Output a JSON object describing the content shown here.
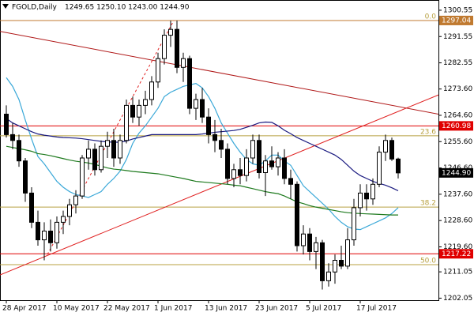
{
  "chart_data": {
    "type": "candlestick",
    "title": "FGOLD,Daily",
    "info": "1249.65 1250.10 1243.00 1244.90",
    "categories": [
      "28 Apr 2017",
      null,
      null,
      null,
      null,
      null,
      null,
      null,
      "10 May 2017",
      null,
      null,
      null,
      null,
      null,
      null,
      null,
      "22 May 2017",
      null,
      null,
      null,
      null,
      null,
      null,
      null,
      "1 Jun 2017",
      null,
      null,
      null,
      null,
      null,
      null,
      null,
      "13 Jun 2017",
      null,
      null,
      null,
      null,
      null,
      null,
      null,
      "23 Jun 2017",
      null,
      null,
      null,
      null,
      null,
      null,
      null,
      "5 Jul 2017",
      null,
      null,
      null,
      null,
      null,
      null,
      null,
      "17 Jul 2017",
      null,
      null,
      null,
      null,
      null,
      null
    ],
    "open": [
      1265,
      1258,
      1256,
      1249,
      1238,
      1228,
      1222,
      1225,
      1221,
      1228,
      1230,
      1234,
      1237,
      1250,
      1253,
      1246,
      1254,
      1256,
      1250,
      1256,
      1268,
      1264,
      1268,
      1270,
      1276,
      1284,
      1292,
      1294,
      1281,
      1284,
      1267,
      1270,
      1264,
      1258,
      1256,
      1253,
      1243,
      1246,
      1244,
      1250,
      1256,
      1245,
      1249,
      1247,
      1250,
      1243,
      1241,
      1220,
      1224,
      1218,
      1221,
      1208,
      1211,
      1215,
      1213,
      1222,
      1233,
      1238,
      1236,
      1241,
      1252,
      1256,
      1249.65
    ],
    "high": [
      1268,
      1262,
      1258,
      1250,
      1240,
      1232,
      1228,
      1229,
      1230,
      1232,
      1236,
      1239,
      1251,
      1256,
      1255,
      1256,
      1259,
      1260,
      1258,
      1270,
      1271,
      1270,
      1273,
      1278,
      1286,
      1294,
      1297,
      1297,
      1286,
      1285,
      1272,
      1274,
      1267,
      1263,
      1260,
      1255,
      1248,
      1250,
      1253,
      1258,
      1258,
      1251,
      1254,
      1252,
      1253,
      1246,
      1242,
      1227,
      1226,
      1223,
      1222,
      1214,
      1217,
      1220,
      1226,
      1236,
      1241,
      1241,
      1243,
      1254,
      1258,
      1257,
      1250.1
    ],
    "low": [
      1257,
      1253,
      1247,
      1235,
      1226,
      1220,
      1215,
      1218,
      1219,
      1224,
      1227,
      1231,
      1236,
      1246,
      1244,
      1245,
      1250,
      1247,
      1248,
      1255,
      1262,
      1261,
      1265,
      1268,
      1274,
      1282,
      1288,
      1279,
      1276,
      1265,
      1263,
      1262,
      1255,
      1252,
      1250,
      1241,
      1240,
      1241,
      1242,
      1248,
      1243,
      1237,
      1246,
      1244,
      1241,
      1236,
      1218,
      1217,
      1215,
      1212,
      1205,
      1206,
      1207,
      1212,
      1212,
      1220,
      1230,
      1232,
      1234,
      1240,
      1249,
      1249,
      1243
    ],
    "close": [
      1258,
      1256,
      1249,
      1238,
      1228,
      1222,
      1225,
      1221,
      1228,
      1230,
      1234,
      1237,
      1250,
      1253,
      1246,
      1254,
      1256,
      1250,
      1256,
      1268,
      1264,
      1268,
      1270,
      1276,
      1284,
      1292,
      1294,
      1281,
      1284,
      1267,
      1270,
      1264,
      1258,
      1256,
      1253,
      1243,
      1246,
      1244,
      1250,
      1256,
      1245,
      1249,
      1247,
      1250,
      1243,
      1241,
      1220,
      1224,
      1218,
      1221,
      1208,
      1211,
      1215,
      1213,
      1222,
      1233,
      1238,
      1236,
      1241,
      1252,
      1256,
      1249.65,
      1244.9
    ],
    "overlays": [
      {
        "color": "#3aa8d8",
        "values": [
          1277.5,
          1274.5,
          1270,
          1263,
          1256.5,
          1250.5,
          1248,
          1245,
          1242,
          1240,
          1238.5,
          1237.5,
          1237,
          1236.5,
          1237.5,
          1238.5,
          1241,
          1243,
          1245.5,
          1249.5,
          1255,
          1258.5,
          1261,
          1264,
          1267,
          1271,
          1272.5,
          1273.5,
          1274.5,
          1275,
          1275.5,
          1274,
          1271,
          1267,
          1262,
          1258.5,
          1255,
          1252,
          1249.5,
          1248,
          1247.5,
          1249,
          1251,
          1251,
          1249,
          1247.5,
          1244,
          1240.5,
          1238.5,
          1236.5,
          1234.5,
          1232.5,
          1230,
          1228,
          1226.5,
          1225.7,
          1225.5,
          1226.5,
          1227.5,
          1228.5,
          1229.5,
          1231,
          1233
        ]
      },
      {
        "color": "#1a1a80",
        "values": [
          1263.5,
          1262,
          1261,
          1260,
          1259,
          1258.2,
          1257.8,
          1257.5,
          1257.2,
          1257,
          1256.9,
          1256.8,
          1256.6,
          1256.3,
          1256,
          1255.7,
          1255.5,
          1255.4,
          1255.4,
          1255.8,
          1256.5,
          1257,
          1257.5,
          1258,
          1258,
          1258,
          1258,
          1258,
          1258,
          1258,
          1258,
          1258.2,
          1258.5,
          1258.8,
          1259,
          1259.2,
          1259.4,
          1259.8,
          1260.5,
          1261.2,
          1262,
          1262.3,
          1262.2,
          1261,
          1259.5,
          1258.3,
          1257,
          1256,
          1255,
          1254,
          1253,
          1252,
          1251,
          1249.5,
          1247.5,
          1245.5,
          1244,
          1243,
          1242,
          1241.3,
          1240.7,
          1239.8,
          1238.8
        ]
      },
      {
        "color": "#1e7a1e",
        "values": [
          1254,
          1253.6,
          1253.2,
          1252.8,
          1252.3,
          1251.5,
          1251.2,
          1250.8,
          1250.3,
          1249.8,
          1249.3,
          1248.9,
          1248.6,
          1248.3,
          1247.8,
          1247.2,
          1246.6,
          1246.2,
          1246,
          1245.7,
          1245.4,
          1245.2,
          1245,
          1244.8,
          1244.6,
          1244.2,
          1243.8,
          1243.4,
          1243,
          1242.5,
          1242,
          1241.8,
          1241.6,
          1241.4,
          1241.2,
          1241,
          1240.7,
          1240.5,
          1240,
          1239.5,
          1239,
          1238.5,
          1238.1,
          1237.8,
          1237,
          1236,
          1235,
          1234.4,
          1233.7,
          1233.2,
          1232.8,
          1232.4,
          1232,
          1231.6,
          1231.3,
          1231.1,
          1231,
          1230.9,
          1230.8,
          1230.7,
          1230.6,
          1230.5,
          1230.5
        ]
      }
    ],
    "trendlines": [
      {
        "color": "#b01818",
        "x": [
          -1,
          68.4
        ],
        "y": [
          1293.3,
          1265
        ]
      },
      {
        "color": "#e02020",
        "x": [
          -1,
          68.4
        ],
        "y": [
          1210,
          1271.6
        ]
      },
      {
        "color": "#e02020",
        "x": [
          6.5,
          26.5
        ],
        "y": [
          1217,
          1297
        ],
        "dashed": true
      }
    ],
    "fib_levels": [
      {
        "label": "0.0",
        "value": 1297.04
      },
      {
        "label": "23.6",
        "value": 1257.6
      },
      {
        "label": "38.2",
        "value": 1233.2
      },
      {
        "label": "50.0",
        "value": 1213.5
      }
    ],
    "fib_color": "#b8a040",
    "levels": [
      {
        "value": 1297.04,
        "color": "#c07a30"
      },
      {
        "value": 1260.98,
        "color": "#e00000"
      },
      {
        "value": 1217.22,
        "color": "#e00000"
      }
    ],
    "price_marker": {
      "value": 1244.9,
      "label": "1244.90"
    },
    "ylim": [
      1201.35,
      1304.05
    ],
    "yticks": [
      1300.55,
      1291.55,
      1282.55,
      {
        "value": 1273.6,
        "label": "1273.60"
      },
      {
        "value": 1264.6,
        "label": "1264.60"
      },
      {
        "value": 1255.6,
        "label": "1255.60"
      },
      {
        "value": 1246.6,
        "label": "1246.60"
      },
      {
        "value": 1237.6,
        "label": "1237.60"
      },
      {
        "value": 1228.6,
        "label": "1228.60"
      },
      {
        "value": 1219.6,
        "label": "1219.60"
      },
      1211.05,
      1202.05
    ]
  }
}
